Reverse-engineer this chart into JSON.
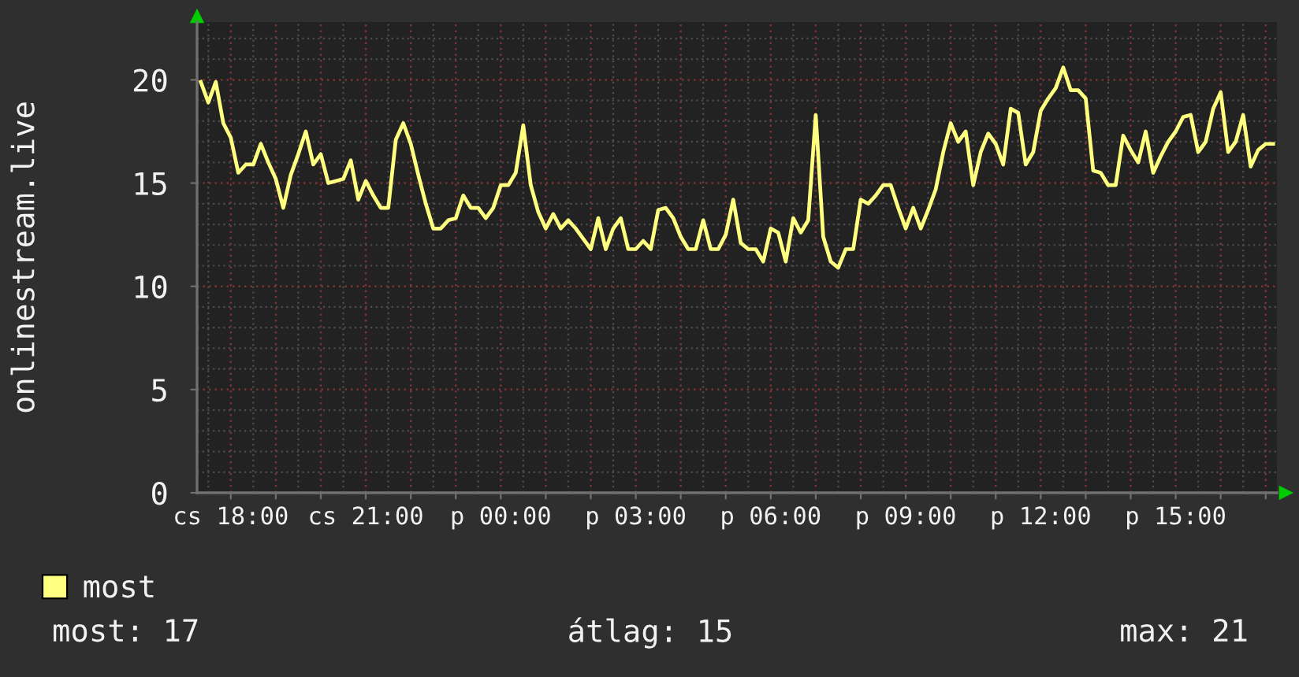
{
  "chart_data": {
    "type": "line",
    "ylabel": "onlinestream.live",
    "categories": [
      null,
      null,
      null,
      null,
      "cs 18:00",
      null,
      null,
      null,
      null,
      null,
      null,
      null,
      null,
      null,
      null,
      null,
      null,
      null,
      null,
      null,
      null,
      null,
      "cs 21:00",
      null,
      null,
      null,
      null,
      null,
      null,
      null,
      null,
      null,
      null,
      null,
      null,
      null,
      null,
      null,
      null,
      null,
      "p 00:00",
      null,
      null,
      null,
      null,
      null,
      null,
      null,
      null,
      null,
      null,
      null,
      null,
      null,
      null,
      null,
      null,
      null,
      "p 03:00",
      null,
      null,
      null,
      null,
      null,
      null,
      null,
      null,
      null,
      null,
      null,
      null,
      null,
      null,
      null,
      null,
      null,
      "p 06:00",
      null,
      null,
      null,
      null,
      null,
      null,
      null,
      null,
      null,
      null,
      null,
      null,
      null,
      null,
      null,
      null,
      null,
      "p 09:00",
      null,
      null,
      null,
      null,
      null,
      null,
      null,
      null,
      null,
      null,
      null,
      null,
      null,
      null,
      null,
      null,
      null,
      "p 12:00",
      null,
      null,
      null,
      null,
      null,
      null,
      null,
      null,
      null,
      null,
      null,
      null,
      null,
      null,
      null,
      null,
      null,
      "p 15:00",
      null,
      null,
      null,
      null,
      null,
      null,
      null,
      null,
      null,
      null,
      null,
      null,
      null
    ],
    "series": [
      {
        "name": "most",
        "color": "#ffff80",
        "values": [
          19.9,
          18.9,
          19.9,
          17.9,
          17.2,
          15.5,
          15.9,
          15.9,
          16.9,
          16.0,
          15.2,
          13.8,
          15.4,
          16.4,
          17.5,
          15.9,
          16.4,
          15.0,
          15.1,
          15.2,
          16.1,
          14.2,
          15.1,
          14.4,
          13.8,
          13.8,
          17.1,
          17.9,
          16.9,
          15.4,
          14.0,
          12.8,
          12.8,
          13.2,
          13.3,
          14.4,
          13.8,
          13.8,
          13.3,
          13.8,
          14.9,
          14.9,
          15.5,
          17.8,
          14.9,
          13.6,
          12.8,
          13.5,
          12.8,
          13.2,
          12.8,
          12.3,
          11.8,
          13.3,
          11.8,
          12.8,
          13.3,
          11.8,
          11.8,
          12.2,
          11.8,
          13.7,
          13.8,
          13.3,
          12.4,
          11.8,
          11.8,
          13.2,
          11.8,
          11.8,
          12.5,
          14.2,
          12.1,
          11.8,
          11.8,
          11.2,
          12.8,
          12.6,
          11.2,
          13.3,
          12.6,
          13.2,
          18.3,
          12.4,
          11.2,
          10.9,
          11.8,
          11.8,
          14.2,
          14.0,
          14.4,
          14.9,
          14.9,
          13.8,
          12.8,
          13.8,
          12.8,
          13.7,
          14.7,
          16.5,
          17.9,
          17.0,
          17.5,
          14.9,
          16.5,
          17.4,
          16.9,
          15.9,
          18.6,
          18.4,
          15.9,
          16.5,
          18.5,
          19.1,
          19.6,
          20.6,
          19.5,
          19.5,
          19.1,
          15.6,
          15.5,
          14.9,
          14.9,
          17.3,
          16.6,
          16.0,
          17.5,
          15.5,
          16.3,
          17.0,
          17.5,
          18.2,
          18.3,
          16.5,
          17.0,
          18.6,
          19.4,
          16.5,
          17.0,
          18.3,
          15.8,
          16.6,
          16.9,
          16.9
        ]
      }
    ],
    "ylim": [
      0,
      22.8
    ],
    "yticks": [
      0,
      5,
      10,
      15,
      20
    ],
    "grid": true,
    "legend": "bottom left",
    "annotations": [
      "most: 17",
      "átlag: 15",
      "max: 21"
    ]
  }
}
